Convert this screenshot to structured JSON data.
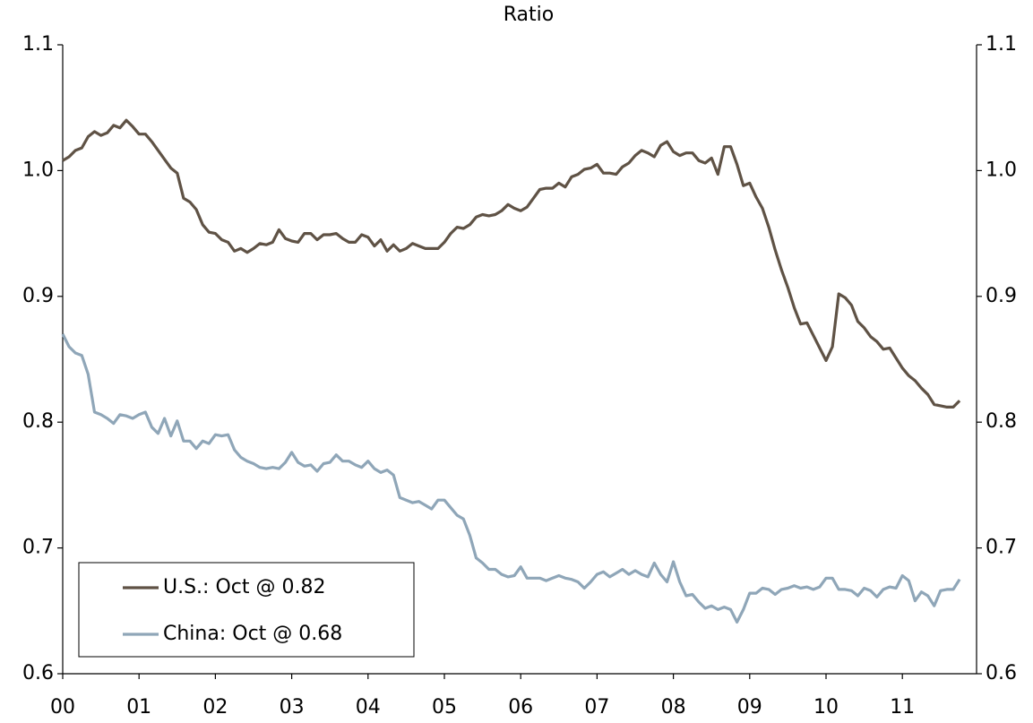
{
  "chart_data": {
    "type": "line",
    "title": "Ratio",
    "categories": [
      "00",
      null,
      null,
      null,
      null,
      null,
      null,
      null,
      null,
      null,
      null,
      null,
      "01",
      null,
      null,
      null,
      null,
      null,
      null,
      null,
      null,
      null,
      null,
      null,
      "02",
      null,
      null,
      null,
      null,
      null,
      null,
      null,
      null,
      null,
      null,
      null,
      "03",
      null,
      null,
      null,
      null,
      null,
      null,
      null,
      null,
      null,
      null,
      null,
      "04",
      null,
      null,
      null,
      null,
      null,
      null,
      null,
      null,
      null,
      null,
      null,
      "05",
      null,
      null,
      null,
      null,
      null,
      null,
      null,
      null,
      null,
      null,
      null,
      "06",
      null,
      null,
      null,
      null,
      null,
      null,
      null,
      null,
      null,
      null,
      null,
      "07",
      null,
      null,
      null,
      null,
      null,
      null,
      null,
      null,
      null,
      null,
      null,
      "08",
      null,
      null,
      null,
      null,
      null,
      null,
      null,
      null,
      null,
      null,
      null,
      "09",
      null,
      null,
      null,
      null,
      null,
      null,
      null,
      null,
      null,
      null,
      null,
      "10",
      null,
      null,
      null,
      null,
      null,
      null,
      null,
      null,
      null,
      null,
      null,
      "11",
      null,
      null,
      null,
      null,
      null,
      null,
      null,
      null,
      null
    ],
    "series": [
      {
        "name": "U.S.: Oct @ 0.82",
        "color": "#5f5245",
        "values": [
          1.008,
          1.011,
          1.016,
          1.018,
          1.027,
          1.031,
          1.028,
          1.03,
          1.036,
          1.034,
          1.04,
          1.035,
          1.029,
          1.029,
          1.023,
          1.016,
          1.009,
          1.002,
          0.998,
          0.978,
          0.975,
          0.969,
          0.957,
          0.951,
          0.95,
          0.945,
          0.943,
          0.936,
          0.938,
          0.935,
          0.938,
          0.942,
          0.941,
          0.943,
          0.953,
          0.946,
          0.944,
          0.943,
          0.95,
          0.95,
          0.945,
          0.949,
          0.949,
          0.95,
          0.946,
          0.943,
          0.943,
          0.949,
          0.947,
          0.94,
          0.945,
          0.936,
          0.941,
          0.936,
          0.938,
          0.942,
          0.94,
          0.938,
          0.938,
          0.938,
          0.943,
          0.95,
          0.955,
          0.954,
          0.957,
          0.963,
          0.965,
          0.964,
          0.965,
          0.968,
          0.973,
          0.97,
          0.968,
          0.971,
          0.978,
          0.985,
          0.986,
          0.986,
          0.99,
          0.987,
          0.995,
          0.997,
          1.001,
          1.002,
          1.005,
          0.998,
          0.998,
          0.997,
          1.003,
          1.006,
          1.012,
          1.016,
          1.014,
          1.011,
          1.02,
          1.023,
          1.015,
          1.012,
          1.014,
          1.014,
          1.008,
          1.006,
          1.01,
          0.997,
          1.019,
          1.019,
          1.005,
          0.988,
          0.99,
          0.979,
          0.97,
          0.955,
          0.937,
          0.921,
          0.907,
          0.891,
          0.878,
          0.879,
          0.869,
          0.859,
          0.849,
          0.86,
          0.902,
          0.899,
          0.893,
          0.88,
          0.875,
          0.868,
          0.864,
          0.858,
          0.859,
          0.851,
          0.843,
          0.837,
          0.833,
          0.827,
          0.822,
          0.814,
          0.813,
          0.812,
          0.812,
          0.817
        ]
      },
      {
        "name": "China: Oct @ 0.68",
        "color": "#8fa6b8",
        "values": [
          0.87,
          0.86,
          0.855,
          0.853,
          0.838,
          0.808,
          0.806,
          0.803,
          0.799,
          0.806,
          0.805,
          0.803,
          0.806,
          0.808,
          0.796,
          0.791,
          0.803,
          0.789,
          0.801,
          0.785,
          0.785,
          0.779,
          0.785,
          0.783,
          0.79,
          0.789,
          0.79,
          0.778,
          0.772,
          0.769,
          0.767,
          0.764,
          0.763,
          0.764,
          0.763,
          0.768,
          0.776,
          0.768,
          0.765,
          0.766,
          0.761,
          0.767,
          0.768,
          0.774,
          0.769,
          0.769,
          0.766,
          0.764,
          0.769,
          0.763,
          0.76,
          0.762,
          0.758,
          0.74,
          0.738,
          0.736,
          0.737,
          0.734,
          0.731,
          0.738,
          0.738,
          0.732,
          0.726,
          0.723,
          0.71,
          0.692,
          0.688,
          0.683,
          0.683,
          0.679,
          0.677,
          0.678,
          0.685,
          0.676,
          0.676,
          0.676,
          0.674,
          0.676,
          0.678,
          0.676,
          0.675,
          0.673,
          0.668,
          0.673,
          0.679,
          0.681,
          0.677,
          0.68,
          0.683,
          0.679,
          0.682,
          0.679,
          0.677,
          0.688,
          0.679,
          0.673,
          0.689,
          0.673,
          0.662,
          0.663,
          0.657,
          0.652,
          0.654,
          0.651,
          0.653,
          0.651,
          0.641,
          0.651,
          0.664,
          0.664,
          0.668,
          0.667,
          0.663,
          0.667,
          0.668,
          0.67,
          0.668,
          0.669,
          0.667,
          0.669,
          0.676,
          0.676,
          0.667,
          0.667,
          0.666,
          0.662,
          0.668,
          0.666,
          0.661,
          0.667,
          0.669,
          0.668,
          0.678,
          0.674,
          0.658,
          0.665,
          0.662,
          0.654,
          0.666,
          0.667,
          0.667,
          0.675
        ]
      }
    ],
    "ylim": [
      0.6,
      1.1
    ],
    "yticks": [
      0.6,
      0.7,
      0.8,
      0.9,
      {
        "value": 1,
        "label": "1.0"
      },
      1.1
    ],
    "y2lim": [
      0.6,
      1.1
    ],
    "y2ticks": [
      0.6,
      0.7,
      0.8,
      0.9,
      {
        "value": 1,
        "label": "1.0"
      },
      1.1
    ],
    "legend": "lower left"
  }
}
